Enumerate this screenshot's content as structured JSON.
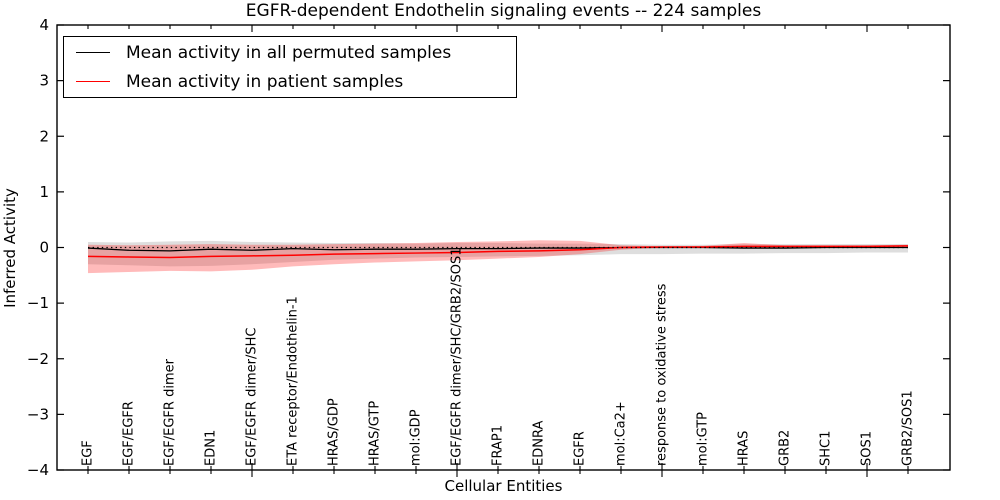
{
  "figure": {
    "title": "EGFR-dependent Endothelin signaling events -- 224 samples",
    "xlabel": "Cellular Entities",
    "ylabel": "Inferred Activity"
  },
  "legend": {
    "position": "upper left",
    "items": [
      {
        "label": "Mean activity in all permuted samples",
        "color": "#000000"
      },
      {
        "label": "Mean activity in patient samples",
        "color": "#ff0000"
      }
    ]
  },
  "chart_data": {
    "type": "line",
    "title": "EGFR-dependent Endothelin signaling events -- 224 samples",
    "xlabel": "Cellular Entities",
    "ylabel": "Inferred Activity",
    "ylim": [
      -4,
      4
    ],
    "yticks": [
      4,
      3,
      2,
      1,
      0,
      -1,
      -2,
      -3,
      -4
    ],
    "x_major_tick_indices": [
      4,
      9,
      14,
      19
    ],
    "grid": false,
    "legend_position": "upper left",
    "zero_line": {
      "y": 0,
      "style": "dotted",
      "color": "#000000"
    },
    "categories": [
      "EGF",
      "EGF/EGFR",
      "EGF/EGFR dimer",
      "EDN1",
      "EGF/EGFR dimer/SHC",
      "ETA receptor/Endothelin-1",
      "HRAS/GDP",
      "HRAS/GTP",
      "mol:GDP",
      "EGF/EGFR dimer/SHC/GRB2/SOS1",
      "FRAP1",
      "EDNRA",
      "EGFR",
      "mol:Ca2+",
      "response to oxidative stress",
      "mol:GTP",
      "HRAS",
      "GRB2",
      "SHC1",
      "SOS1",
      "GRB2/SOS1"
    ],
    "series": [
      {
        "name": "Mean activity in all permuted samples",
        "color": "#000000",
        "line_width": 1.3,
        "band_color": "rgba(0,0,0,0.13)",
        "values": [
          -0.01,
          -0.05,
          -0.06,
          -0.03,
          -0.05,
          -0.02,
          -0.04,
          -0.03,
          -0.03,
          -0.02,
          -0.02,
          -0.01,
          -0.01,
          0.0,
          0.0,
          0.0,
          -0.01,
          -0.01,
          0.0,
          0.0,
          0.0
        ],
        "band_upper": [
          0.1,
          0.09,
          0.11,
          0.12,
          0.1,
          0.09,
          0.08,
          0.08,
          0.07,
          0.08,
          0.08,
          0.07,
          0.07,
          0.06,
          0.05,
          0.05,
          0.06,
          0.06,
          0.06,
          0.06,
          0.06
        ],
        "band_lower": [
          -0.3,
          -0.32,
          -0.34,
          -0.33,
          -0.3,
          -0.26,
          -0.22,
          -0.2,
          -0.18,
          -0.17,
          -0.16,
          -0.15,
          -0.14,
          -0.12,
          -0.12,
          -0.11,
          -0.11,
          -0.1,
          -0.1,
          -0.09,
          -0.09
        ]
      },
      {
        "name": "Mean activity in patient samples",
        "color": "#ff0000",
        "line_width": 1.5,
        "band_color": "rgba(255,0,0,0.27)",
        "values": [
          -0.16,
          -0.17,
          -0.18,
          -0.16,
          -0.15,
          -0.14,
          -0.12,
          -0.11,
          -0.1,
          -0.09,
          -0.07,
          -0.06,
          -0.04,
          0.0,
          0.01,
          0.01,
          0.02,
          0.02,
          0.02,
          0.02,
          0.03
        ],
        "band_upper": [
          0.05,
          0.04,
          0.05,
          0.06,
          0.05,
          0.05,
          0.06,
          0.07,
          0.08,
          0.1,
          0.11,
          0.13,
          0.12,
          0.04,
          0.02,
          0.03,
          0.08,
          0.04,
          0.04,
          0.04,
          0.05
        ],
        "band_lower": [
          -0.46,
          -0.44,
          -0.42,
          -0.43,
          -0.4,
          -0.34,
          -0.3,
          -0.27,
          -0.25,
          -0.23,
          -0.2,
          -0.17,
          -0.12,
          -0.04,
          0.0,
          -0.01,
          -0.01,
          0.0,
          0.0,
          0.01,
          0.01
        ]
      }
    ]
  }
}
